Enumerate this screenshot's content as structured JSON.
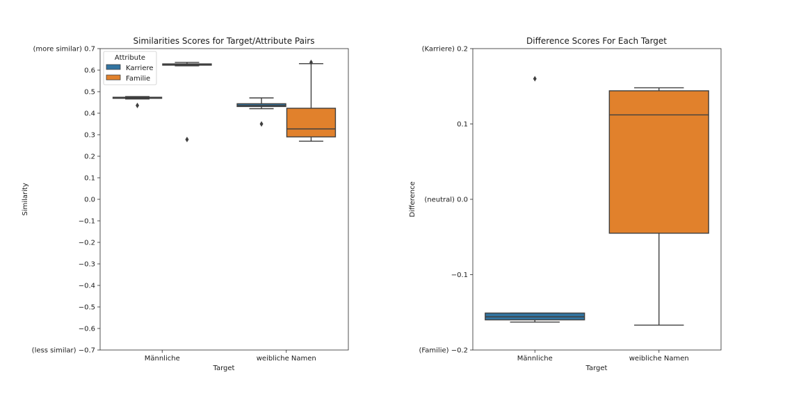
{
  "chart_data": [
    {
      "type": "box",
      "title": "Similarities Scores for Target/Attribute Pairs",
      "xlabel": "Target",
      "ylabel": "Similarity",
      "ylim": [
        -0.7,
        0.7
      ],
      "yticks": [
        {
          "value": 0.7,
          "label": "(more similar) 0.7"
        },
        {
          "value": 0.6,
          "label": "0.6"
        },
        {
          "value": 0.5,
          "label": "0.5"
        },
        {
          "value": 0.4,
          "label": "0.4"
        },
        {
          "value": 0.3,
          "label": "0.3"
        },
        {
          "value": 0.2,
          "label": "0.2"
        },
        {
          "value": 0.1,
          "label": "0.1"
        },
        {
          "value": 0.0,
          "label": "0.0"
        },
        {
          "value": -0.1,
          "label": "−0.1"
        },
        {
          "value": -0.2,
          "label": "−0.2"
        },
        {
          "value": -0.3,
          "label": "−0.3"
        },
        {
          "value": -0.4,
          "label": "−0.4"
        },
        {
          "value": -0.5,
          "label": "−0.5"
        },
        {
          "value": -0.6,
          "label": "−0.6"
        },
        {
          "value": -0.7,
          "label": "(less similar) −0.7"
        }
      ],
      "categories": [
        "Männliche",
        "weibliche Namen"
      ],
      "legend": {
        "title": "Attribute",
        "position": "top-left"
      },
      "series": [
        {
          "name": "Karriere",
          "color": "#3274a1",
          "boxes": [
            {
              "whislo": 0.466,
              "q1": 0.469,
              "med": 0.471,
              "q3": 0.474,
              "whishi": 0.477,
              "fliers": [
                0.436
              ]
            },
            {
              "whislo": 0.421,
              "q1": 0.431,
              "med": 0.436,
              "q3": 0.444,
              "whishi": 0.471,
              "fliers": [
                0.35
              ]
            }
          ]
        },
        {
          "name": "Familie",
          "color": "#e1812c",
          "boxes": [
            {
              "whislo": 0.62,
              "q1": 0.623,
              "med": 0.626,
              "q3": 0.629,
              "whishi": 0.636,
              "fliers": [
                0.278
              ]
            },
            {
              "whislo": 0.27,
              "q1": 0.29,
              "med": 0.327,
              "q3": 0.423,
              "whishi": 0.63,
              "fliers": [
                0.636
              ]
            }
          ]
        }
      ]
    },
    {
      "type": "box",
      "title": "Difference Scores For Each Target",
      "xlabel": "Target",
      "ylabel": "Difference",
      "ylim": [
        -0.2,
        0.2
      ],
      "yticks": [
        {
          "value": 0.2,
          "label": "(Karriere) 0.2"
        },
        {
          "value": 0.1,
          "label": "0.1"
        },
        {
          "value": 0.0,
          "label": "(neutral) 0.0"
        },
        {
          "value": -0.1,
          "label": "−0.1"
        },
        {
          "value": -0.2,
          "label": "(Familie) −0.2"
        }
      ],
      "categories": [
        "Männliche",
        "weibliche Namen"
      ],
      "boxes": [
        {
          "category": "Männliche",
          "color": "#3274a1",
          "whislo": -0.163,
          "q1": -0.16,
          "med": -0.156,
          "q3": -0.151,
          "whishi": -0.151,
          "fliers": [
            0.16
          ]
        },
        {
          "category": "weibliche Namen",
          "color": "#e1812c",
          "whislo": -0.167,
          "q1": -0.045,
          "med": 0.112,
          "q3": 0.144,
          "whishi": 0.148,
          "fliers": []
        }
      ]
    }
  ]
}
